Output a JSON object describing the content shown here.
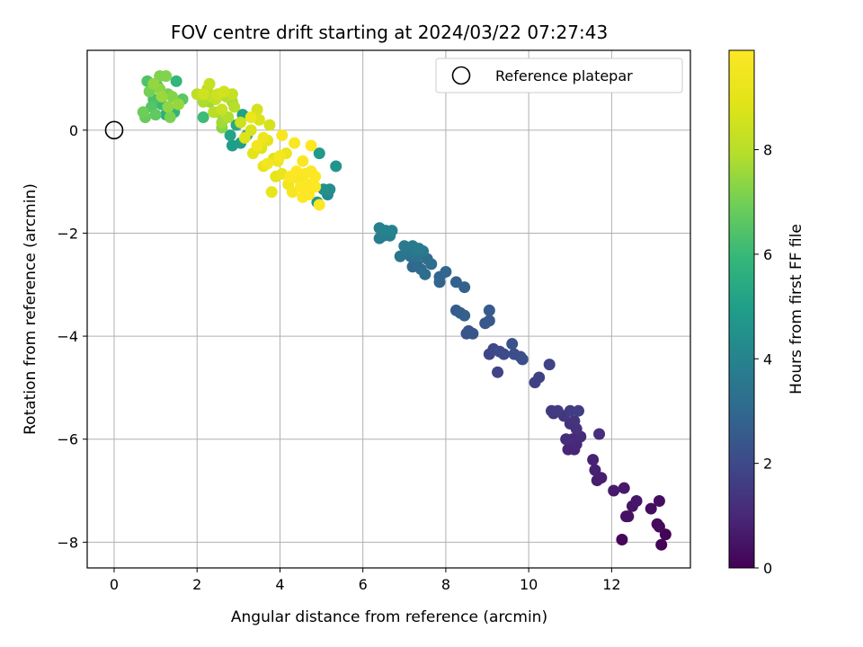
{
  "chart_data": {
    "type": "scatter",
    "title": "FOV centre drift starting at 2024/03/22 07:27:43",
    "xlabel": "Angular distance from reference (arcmin)",
    "ylabel": "Rotation from reference (arcmin)",
    "xlim": [
      -0.65,
      13.9
    ],
    "ylim": [
      -8.5,
      1.55
    ],
    "xticks": [
      0,
      2,
      4,
      6,
      8,
      10,
      12
    ],
    "yticks": [
      0,
      -2,
      -4,
      -6,
      -8
    ],
    "grid": true,
    "colormap": "viridis",
    "colorbar": {
      "label": "Hours from first FF file",
      "range": [
        0,
        9.9
      ],
      "ticks": [
        0,
        2,
        4,
        6,
        8
      ]
    },
    "legend": {
      "position": "top-right",
      "entries": [
        "Reference platepar"
      ]
    },
    "reference_point": {
      "x": 0,
      "y": 0
    },
    "points": [
      [
        13.2,
        -8.05,
        0.05
      ],
      [
        13.3,
        -7.85,
        0.1
      ],
      [
        12.25,
        -7.95,
        0.15
      ],
      [
        13.15,
        -7.7,
        0.2
      ],
      [
        13.1,
        -7.65,
        0.25
      ],
      [
        12.95,
        -7.35,
        0.3
      ],
      [
        13.15,
        -7.2,
        0.35
      ],
      [
        12.35,
        -7.5,
        0.4
      ],
      [
        12.4,
        -7.5,
        0.45
      ],
      [
        12.5,
        -7.3,
        0.5
      ],
      [
        12.6,
        -7.2,
        0.55
      ],
      [
        12.3,
        -6.95,
        0.6
      ],
      [
        12.05,
        -7.0,
        0.65
      ],
      [
        11.65,
        -6.8,
        0.7
      ],
      [
        11.75,
        -6.75,
        0.75
      ],
      [
        11.6,
        -6.6,
        0.8
      ],
      [
        11.55,
        -6.4,
        0.85
      ],
      [
        11.1,
        -6.2,
        0.9
      ],
      [
        10.95,
        -6.2,
        0.95
      ],
      [
        11.15,
        -6.1,
        1.0
      ],
      [
        11.05,
        -6.0,
        1.05
      ],
      [
        11.25,
        -5.95,
        1.1
      ],
      [
        10.9,
        -6.0,
        1.15
      ],
      [
        11.7,
        -5.9,
        1.2
      ],
      [
        11.15,
        -5.8,
        1.25
      ],
      [
        11.0,
        -5.7,
        1.3
      ],
      [
        11.1,
        -5.65,
        1.35
      ],
      [
        10.85,
        -5.55,
        1.4
      ],
      [
        10.6,
        -5.5,
        1.45
      ],
      [
        10.55,
        -5.45,
        1.5
      ],
      [
        10.7,
        -5.45,
        1.55
      ],
      [
        11.0,
        -5.45,
        1.6
      ],
      [
        11.2,
        -5.45,
        1.65
      ],
      [
        10.15,
        -4.9,
        1.7
      ],
      [
        10.25,
        -4.8,
        1.75
      ],
      [
        10.5,
        -4.55,
        1.8
      ],
      [
        9.25,
        -4.7,
        1.85
      ],
      [
        9.05,
        -4.35,
        1.9
      ],
      [
        9.15,
        -4.25,
        1.95
      ],
      [
        9.3,
        -4.3,
        2.0
      ],
      [
        9.4,
        -4.35,
        2.05
      ],
      [
        9.65,
        -4.35,
        2.1
      ],
      [
        9.8,
        -4.4,
        2.15
      ],
      [
        9.85,
        -4.45,
        2.2
      ],
      [
        9.6,
        -4.15,
        2.25
      ],
      [
        8.5,
        -3.95,
        2.3
      ],
      [
        8.55,
        -3.9,
        2.35
      ],
      [
        8.65,
        -3.95,
        2.4
      ],
      [
        8.95,
        -3.75,
        2.45
      ],
      [
        9.05,
        -3.7,
        2.5
      ],
      [
        9.05,
        -3.5,
        2.55
      ],
      [
        8.25,
        -3.5,
        2.6
      ],
      [
        8.35,
        -3.55,
        2.65
      ],
      [
        8.45,
        -3.6,
        2.7
      ],
      [
        8.25,
        -2.95,
        2.75
      ],
      [
        8.45,
        -3.05,
        2.8
      ],
      [
        7.85,
        -2.95,
        2.85
      ],
      [
        7.85,
        -2.85,
        2.9
      ],
      [
        8.0,
        -2.75,
        2.95
      ],
      [
        7.2,
        -2.65,
        3.0
      ],
      [
        7.3,
        -2.6,
        3.05
      ],
      [
        7.4,
        -2.7,
        3.1
      ],
      [
        7.5,
        -2.8,
        3.15
      ],
      [
        7.65,
        -2.6,
        3.2
      ],
      [
        7.55,
        -2.5,
        3.25
      ],
      [
        7.15,
        -2.45,
        3.3
      ],
      [
        7.3,
        -2.45,
        3.35
      ],
      [
        6.9,
        -2.45,
        3.4
      ],
      [
        7.05,
        -2.35,
        3.45
      ],
      [
        7.2,
        -2.35,
        3.5
      ],
      [
        7.45,
        -2.35,
        3.55
      ],
      [
        7.0,
        -2.25,
        3.6
      ],
      [
        7.2,
        -2.25,
        3.65
      ],
      [
        7.35,
        -2.3,
        3.7
      ],
      [
        6.4,
        -2.1,
        3.75
      ],
      [
        6.5,
        -2.05,
        3.8
      ],
      [
        6.65,
        -2.05,
        3.85
      ],
      [
        6.4,
        -1.9,
        3.9
      ],
      [
        6.55,
        -1.95,
        3.95
      ],
      [
        6.7,
        -1.95,
        4.0
      ],
      [
        5.15,
        -1.25,
        4.2
      ],
      [
        5.2,
        -1.15,
        4.4
      ],
      [
        5.05,
        -1.15,
        4.5
      ],
      [
        5.35,
        -0.7,
        4.6
      ],
      [
        4.9,
        -1.4,
        4.7
      ],
      [
        4.95,
        -0.45,
        4.8
      ],
      [
        2.85,
        -0.3,
        4.9
      ],
      [
        3.05,
        -0.25,
        5.0
      ],
      [
        3.1,
        0.3,
        5.1
      ],
      [
        2.8,
        -0.1,
        5.2
      ],
      [
        3.2,
        -0.1,
        5.3
      ],
      [
        2.95,
        0.1,
        5.4
      ],
      [
        1.25,
        0.3,
        5.6
      ],
      [
        1.45,
        0.35,
        5.8
      ],
      [
        1.5,
        0.95,
        5.9
      ],
      [
        1.15,
        0.5,
        6.0
      ],
      [
        2.15,
        0.25,
        6.1
      ],
      [
        1.05,
        0.85,
        6.2
      ],
      [
        0.95,
        0.6,
        6.3
      ],
      [
        0.8,
        0.95,
        6.4
      ],
      [
        0.9,
        0.45,
        6.5
      ],
      [
        1.65,
        0.6,
        6.6
      ],
      [
        1.0,
        0.3,
        6.7
      ],
      [
        0.75,
        0.25,
        6.8
      ],
      [
        0.7,
        0.35,
        6.9
      ],
      [
        0.85,
        0.75,
        7.0
      ],
      [
        1.3,
        0.7,
        7.05
      ],
      [
        1.35,
        0.25,
        7.1
      ],
      [
        1.1,
        1.05,
        7.15
      ],
      [
        1.25,
        1.05,
        7.2
      ],
      [
        1.4,
        0.65,
        7.25
      ],
      [
        2.6,
        0.05,
        7.3
      ],
      [
        1.1,
        0.8,
        7.35
      ],
      [
        1.3,
        0.45,
        7.4
      ],
      [
        0.95,
        0.9,
        7.45
      ],
      [
        1.55,
        0.5,
        7.5
      ],
      [
        1.15,
        0.65,
        7.55
      ],
      [
        2.3,
        0.55,
        7.6
      ],
      [
        2.6,
        0.15,
        7.65
      ],
      [
        2.5,
        0.35,
        7.7
      ],
      [
        2.85,
        0.55,
        7.75
      ],
      [
        2.15,
        0.55,
        7.8
      ],
      [
        2.75,
        0.25,
        7.85
      ],
      [
        2.7,
        0.65,
        7.9
      ],
      [
        2.9,
        0.45,
        7.95
      ],
      [
        2.4,
        0.35,
        8.0
      ],
      [
        2.25,
        0.8,
        8.05
      ],
      [
        2.0,
        0.7,
        8.1
      ],
      [
        2.35,
        0.65,
        8.15
      ],
      [
        2.45,
        0.6,
        8.2
      ],
      [
        2.85,
        0.7,
        8.25
      ],
      [
        2.3,
        0.9,
        8.3
      ],
      [
        2.6,
        0.4,
        8.35
      ],
      [
        3.05,
        0.15,
        8.4
      ],
      [
        2.5,
        0.7,
        8.45
      ],
      [
        2.15,
        0.7,
        8.5
      ],
      [
        2.65,
        0.75,
        8.55
      ],
      [
        3.45,
        0.4,
        8.6
      ],
      [
        3.75,
        0.1,
        8.65
      ],
      [
        3.3,
        0.0,
        8.7
      ],
      [
        3.5,
        0.2,
        8.75
      ],
      [
        3.15,
        -0.15,
        8.8
      ],
      [
        3.55,
        -0.35,
        8.85
      ],
      [
        3.85,
        -0.55,
        8.9
      ],
      [
        3.35,
        -0.45,
        8.95
      ],
      [
        3.7,
        -0.2,
        9.0
      ],
      [
        3.9,
        -0.9,
        9.05
      ],
      [
        3.6,
        -0.7,
        9.1
      ],
      [
        3.8,
        -1.2,
        9.15
      ],
      [
        4.05,
        -0.85,
        9.2
      ],
      [
        4.15,
        -0.45,
        9.25
      ],
      [
        3.3,
        0.25,
        9.3
      ],
      [
        3.6,
        -0.15,
        9.35
      ],
      [
        3.95,
        -0.6,
        9.4
      ],
      [
        4.2,
        -1.05,
        9.45
      ],
      [
        3.45,
        -0.3,
        9.5
      ],
      [
        3.7,
        -0.65,
        9.55
      ],
      [
        4.0,
        -0.5,
        9.6
      ],
      [
        4.3,
        -1.2,
        9.65
      ],
      [
        4.45,
        -0.95,
        9.7
      ],
      [
        4.05,
        -0.1,
        9.72
      ],
      [
        4.35,
        -0.25,
        9.75
      ],
      [
        4.55,
        -0.6,
        9.78
      ],
      [
        4.6,
        -0.85,
        9.8
      ],
      [
        4.75,
        -0.8,
        9.82
      ],
      [
        4.5,
        -1.1,
        9.84
      ],
      [
        4.65,
        -1.05,
        9.86
      ],
      [
        4.7,
        -1.25,
        9.88
      ],
      [
        4.85,
        -0.9,
        9.9
      ],
      [
        4.75,
        -0.3,
        9.9
      ],
      [
        4.55,
        -1.3,
        9.9
      ],
      [
        4.95,
        -1.45,
        9.9
      ],
      [
        4.4,
        -0.8,
        9.9
      ],
      [
        4.25,
        -0.9,
        9.88
      ],
      [
        4.6,
        -1.2,
        9.9
      ],
      [
        4.85,
        -1.1,
        9.9
      ]
    ]
  }
}
